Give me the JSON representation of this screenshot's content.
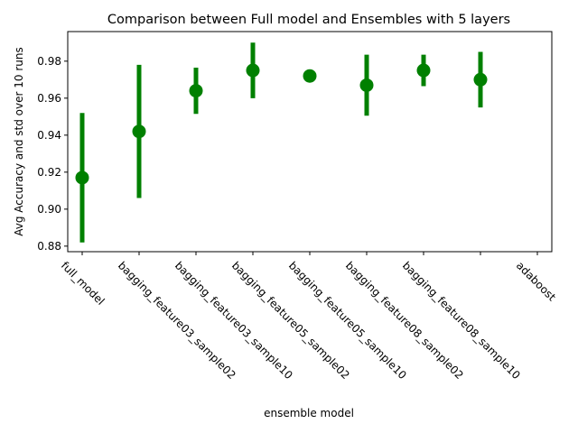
{
  "chart_data": {
    "type": "scatter",
    "title": "Comparison between Full model and Ensembles with 5 layers",
    "xlabel": "ensemble model",
    "ylabel": "Avg Accuracy and std over 10 runs",
    "categories": [
      "full_model",
      "bagging_feature03_sample02",
      "bagging_feature03_sample10",
      "bagging_feature05_sample02",
      "bagging_feature05_sample10",
      "bagging_feature08_sample02",
      "bagging_feature08_sample10",
      "adaboost"
    ],
    "x_ticks": [
      "full_model",
      "bagging_feature03_sample02",
      "bagging_feature03_sample10",
      "bagging_feature05_sample02",
      "bagging_feature05_sample10",
      "bagging_feature08_sample02",
      "bagging_feature08_sample10",
      "",
      "adaboost"
    ],
    "series": [
      {
        "mean": [
          0.917,
          0.942,
          0.964,
          0.975,
          0.972,
          0.967,
          0.975,
          0.97
        ],
        "std": [
          0.035,
          0.036,
          0.0125,
          0.015,
          0.0,
          0.0165,
          0.0085,
          0.015
        ],
        "color": "#008000"
      }
    ],
    "ylim": [
      0.877,
      0.996
    ],
    "yticks": [
      0.88,
      0.9,
      0.92,
      0.94,
      0.96,
      0.98
    ],
    "ytick_labels": [
      "0.88",
      "0.90",
      "0.92",
      "0.94",
      "0.96",
      "0.98"
    ],
    "grid": false,
    "legend": "none"
  }
}
